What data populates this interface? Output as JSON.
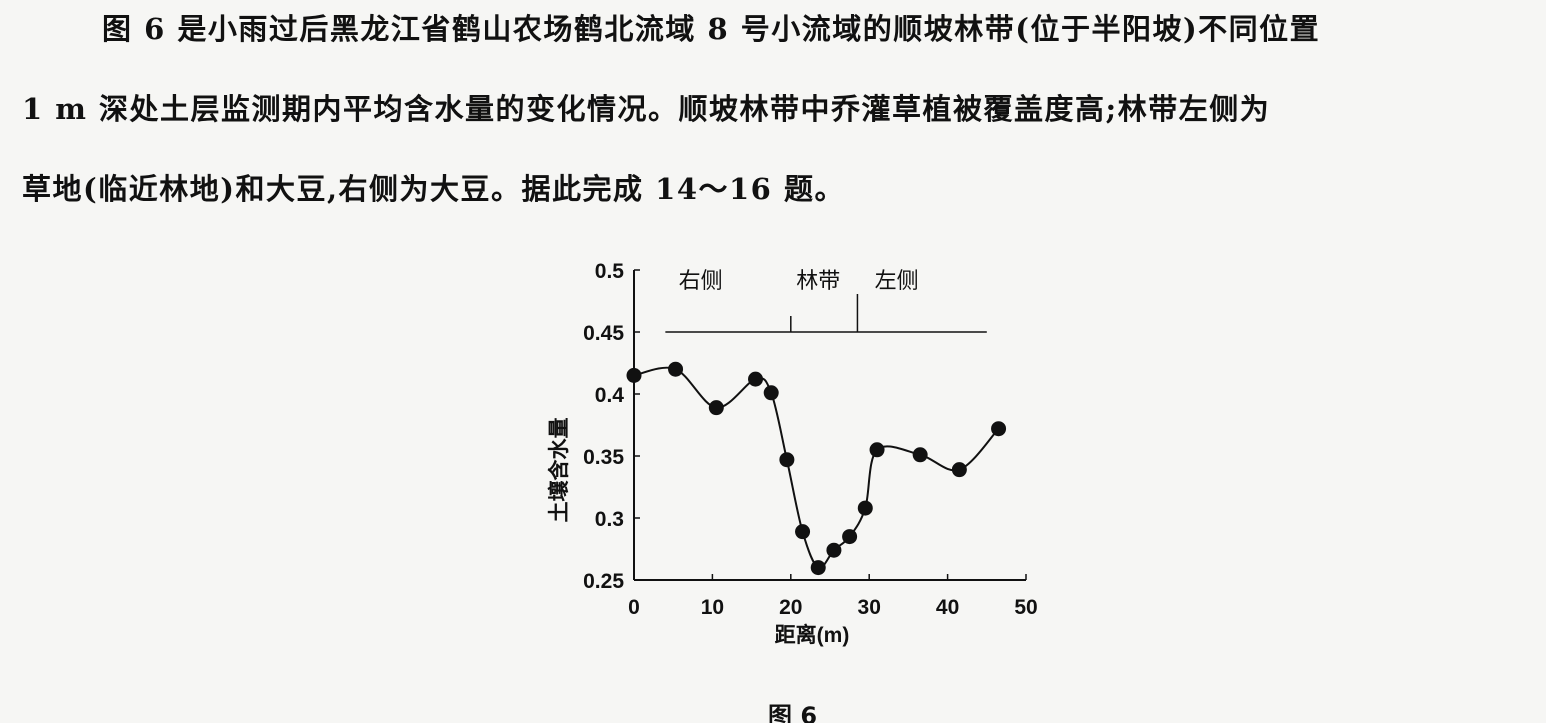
{
  "text": {
    "line1": "图 6 是小雨过后黑龙江省鹤山农场鹤北流域 8 号小流域的顺坡林带(位于半阳坡)不同位置",
    "line2": "1 m 深处土层监测期内平均含水量的变化情况。顺坡林带中乔灌草植被覆盖度高;林带左侧为",
    "line3": "草地(临近林地)和大豆,右侧为大豆。据此完成 14～16 题。"
  },
  "caption": "图 6",
  "chart_data": {
    "type": "line",
    "xlabel": "距离(m)",
    "ylabel": "土壤含水量",
    "xlim": [
      0,
      50
    ],
    "ylim": [
      0.25,
      0.5
    ],
    "x_ticks": [
      "0",
      "10",
      "20",
      "30",
      "40",
      "50"
    ],
    "y_ticks": [
      "0.25",
      "0.3",
      "0.35",
      "0.4",
      "0.45",
      "0.5"
    ],
    "zone_labels": [
      "右侧",
      "林带",
      "左侧"
    ],
    "zone_boundaries": [
      20,
      28.5
    ],
    "zone_line": {
      "x_range": [
        4,
        45
      ],
      "y": 0.45
    },
    "series": [
      {
        "x": [
          0,
          5.3,
          10.5,
          15.5,
          17.5,
          19.5,
          21.5,
          23.5,
          25.5,
          27.5,
          29.5,
          31,
          36.5,
          41.5,
          46.5
        ],
        "y": [
          0.415,
          0.42,
          0.389,
          0.412,
          0.401,
          0.347,
          0.289,
          0.26,
          0.274,
          0.285,
          0.308,
          0.355,
          0.351,
          0.339,
          0.372
        ]
      }
    ],
    "line_color": "#111111",
    "marker_color": "#111111"
  }
}
